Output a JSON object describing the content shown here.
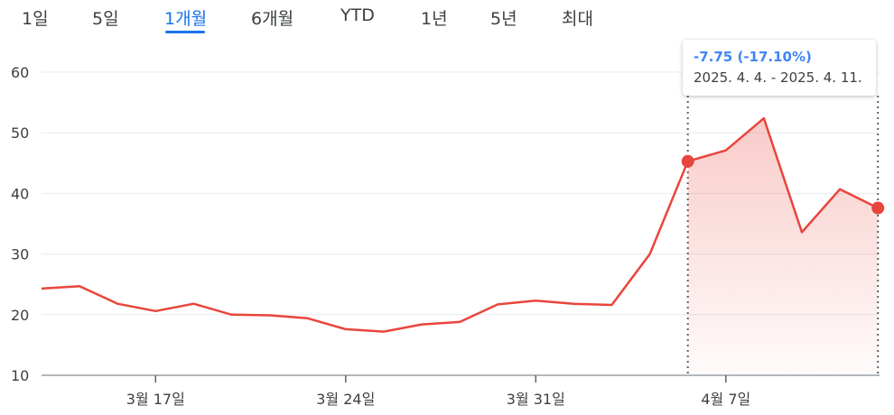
{
  "tabs": [
    {
      "label": "1일",
      "active": false
    },
    {
      "label": "5일",
      "active": false
    },
    {
      "label": "1개월",
      "active": true
    },
    {
      "label": "6개월",
      "active": false
    },
    {
      "label": "YTD",
      "active": false
    },
    {
      "label": "1년",
      "active": false
    },
    {
      "label": "5년",
      "active": false
    },
    {
      "label": "최대",
      "active": false
    }
  ],
  "tooltip": {
    "change": "-7.75 (-17.10%)",
    "range": "2025. 4. 4. - 2025. 4. 11."
  },
  "colors": {
    "line": "#e8453c",
    "accent": "#1a73e8",
    "tooltip_change": "#4285f4",
    "grid": "#e8eaed"
  },
  "chart_data": {
    "type": "line",
    "ylim": [
      10,
      60
    ],
    "yticks": [
      10,
      20,
      30,
      40,
      50,
      60
    ],
    "xticks": [
      {
        "label": "3월 17일",
        "index": 3
      },
      {
        "label": "3월 24일",
        "index": 8
      },
      {
        "label": "3월 31일",
        "index": 13
      },
      {
        "label": "4월 7일",
        "index": 18
      }
    ],
    "values": [
      24.3,
      24.7,
      21.8,
      20.6,
      21.8,
      20.0,
      19.9,
      19.4,
      17.6,
      17.2,
      18.4,
      18.8,
      21.7,
      22.3,
      21.8,
      21.6,
      30.0,
      45.3,
      47.1,
      52.4,
      33.6,
      40.7,
      37.6
    ],
    "selection": {
      "start_index": 17,
      "end_index": 22
    }
  }
}
